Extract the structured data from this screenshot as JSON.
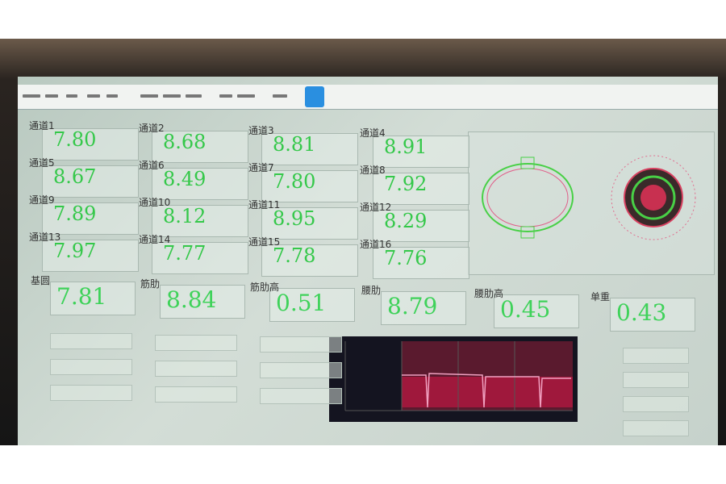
{
  "channels": [
    {
      "label": "通道1",
      "value": "7.80"
    },
    {
      "label": "通道2",
      "value": "8.68"
    },
    {
      "label": "通道3",
      "value": "8.81"
    },
    {
      "label": "通道4",
      "value": "8.91"
    },
    {
      "label": "通道5",
      "value": "8.67"
    },
    {
      "label": "通道6",
      "value": "8.49"
    },
    {
      "label": "通道7",
      "value": "7.80"
    },
    {
      "label": "通道8",
      "value": "7.92"
    },
    {
      "label": "通道9",
      "value": "7.89"
    },
    {
      "label": "通道10",
      "value": "8.12"
    },
    {
      "label": "通道11",
      "value": "8.95"
    },
    {
      "label": "通道12",
      "value": "8.29"
    },
    {
      "label": "通道13",
      "value": "7.97"
    },
    {
      "label": "通道14",
      "value": "7.77"
    },
    {
      "label": "通道15",
      "value": "7.78"
    },
    {
      "label": "通道16",
      "value": "7.76"
    }
  ],
  "metrics": [
    {
      "label": "基圆",
      "value": "7.81"
    },
    {
      "label": "筋肋",
      "value": "8.84"
    },
    {
      "label": "筋肋高",
      "value": "0.51"
    },
    {
      "label": "腰肋",
      "value": "8.79"
    },
    {
      "label": "腰肋高",
      "value": "0.45"
    },
    {
      "label": "单重",
      "value": "0.43"
    }
  ]
}
